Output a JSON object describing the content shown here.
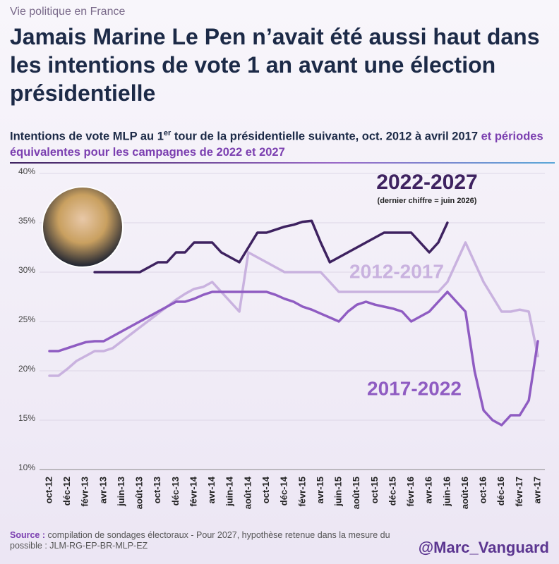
{
  "kicker": "Vie politique en France",
  "chart_data": {
    "type": "line",
    "title": "Jamais Marine Le Pen n’avait été aussi haut dans les intentions de vote 1 an avant une élection présidentielle",
    "subtitle": [
      "Intentions de vote MLP au 1",
      "er",
      " tour de la présidentielle suivante, oct. 2012 à avril 2017",
      " et périodes équivalentes pour les campagnes de 2022 et 2027"
    ],
    "categories": [
      "oct-12",
      null,
      "déc-12",
      null,
      "févr-13",
      null,
      "avr-13",
      null,
      "juin-13",
      null,
      "août-13",
      null,
      "oct-13",
      null,
      "déc-13",
      null,
      "févr-14",
      null,
      "avr-14",
      null,
      "juin-14",
      null,
      "août-14",
      null,
      "oct-14",
      null,
      "déc-14",
      null,
      "févr-15",
      null,
      "avr-15",
      null,
      "juin-15",
      null,
      "août-15",
      null,
      "oct-15",
      null,
      "déc-15",
      null,
      "févr-16",
      null,
      "avr-16",
      null,
      "juin-16",
      null,
      "août-16",
      null,
      "oct-16",
      null,
      "déc-16",
      null,
      "févr-17",
      null,
      "avr-17"
    ],
    "series": [
      {
        "name": "2012-2017",
        "color": "#c9b2df",
        "values": [
          19.5,
          19.5,
          20.2,
          21,
          21.5,
          22,
          22,
          22.3,
          23,
          23.7,
          24.4,
          25.1,
          25.8,
          26.5,
          27.2,
          27.8,
          28.3,
          28.5,
          29,
          28,
          27,
          26,
          32,
          31.5,
          31,
          30.5,
          30,
          30,
          30,
          30,
          30,
          29,
          28,
          28,
          28,
          28,
          28,
          28,
          28,
          28,
          28,
          28,
          28,
          28,
          29,
          31,
          33,
          31,
          29,
          27.5,
          26,
          26,
          26.2,
          26,
          21.5
        ]
      },
      {
        "name": "2017-2022",
        "color": "#8f5cc2",
        "values": [
          22,
          22,
          22.3,
          22.6,
          22.9,
          23,
          23,
          23.5,
          24,
          24.5,
          25,
          25.5,
          26,
          26.5,
          27,
          27,
          27.3,
          27.7,
          28,
          28,
          28,
          28,
          28,
          28,
          28,
          27.7,
          27.3,
          27,
          26.5,
          26.2,
          25.8,
          25.4,
          25,
          26,
          26.7,
          27,
          26.7,
          26.5,
          26.3,
          26,
          25,
          25.5,
          26,
          27,
          28,
          27,
          26,
          20,
          16,
          15,
          14.5,
          15.5,
          15.5,
          17,
          23
        ]
      },
      {
        "name": "2022-2027",
        "color": "#3e2260",
        "values": [
          null,
          null,
          null,
          null,
          null,
          30,
          30,
          30,
          30,
          30,
          30,
          30.5,
          31,
          31,
          32,
          32,
          33,
          33,
          33,
          32,
          31.5,
          31,
          32.5,
          34,
          34,
          34.3,
          34.6,
          34.8,
          35.1,
          35.2,
          33,
          31,
          31.5,
          32,
          32.5,
          33,
          33.5,
          34,
          34,
          34,
          34,
          33,
          32,
          33,
          35,
          null,
          null,
          null,
          null,
          null,
          null,
          null,
          null,
          null,
          null
        ]
      }
    ],
    "annotation": "(dernier chiffre = juin 2026)",
    "ylim": [
      10,
      40
    ],
    "yticks": [
      {
        "value": 10,
        "label": "10%"
      },
      {
        "value": 15,
        "label": "15%"
      },
      {
        "value": 20,
        "label": "20%"
      },
      {
        "value": 25,
        "label": "25%"
      },
      {
        "value": 30,
        "label": "30%"
      },
      {
        "value": 35,
        "label": "35%"
      },
      {
        "value": 40,
        "label": "40%"
      }
    ],
    "grid": true
  },
  "source": {
    "label": "Source :",
    "text": "compilation de sondages électoraux - Pour 2027, hypothèse retenue dans la mesure du possible : JLM-RG-EP-BR-MLP-EZ"
  },
  "handle": "@Marc_Vanguard"
}
